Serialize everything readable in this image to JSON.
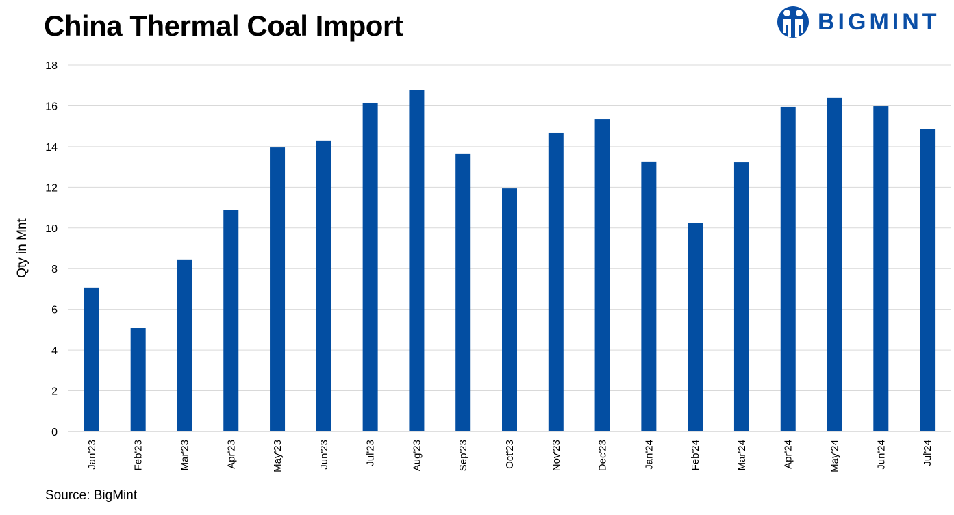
{
  "logo": {
    "text": "BIGMINT"
  },
  "source": "Source: BigMint",
  "chart_data": {
    "type": "bar",
    "title": "China Thermal Coal Import",
    "xlabel": "",
    "ylabel": "Qty in Mnt",
    "ylim": [
      0,
      18
    ],
    "yticks": [
      0,
      2,
      4,
      6,
      8,
      10,
      12,
      14,
      16,
      18
    ],
    "grid": true,
    "bar_color": "#034ea2",
    "categories": [
      "Jan'23",
      "Feb'23",
      "Mar'23",
      "Apr'23",
      "May'23",
      "Jun'23",
      "Jul'23",
      "Aug'23",
      "Sep'23",
      "Oct'23",
      "Nov'23",
      "Dec'23",
      "Jan'24",
      "Feb'24",
      "Mar'24",
      "Apr'24",
      "May'24",
      "Jun'24",
      "Jul'24"
    ],
    "values": [
      7.07,
      5.08,
      8.45,
      10.9,
      13.96,
      14.27,
      16.15,
      16.76,
      13.63,
      11.94,
      14.67,
      15.34,
      13.26,
      10.26,
      13.22,
      15.95,
      16.39,
      15.98,
      14.87
    ]
  }
}
